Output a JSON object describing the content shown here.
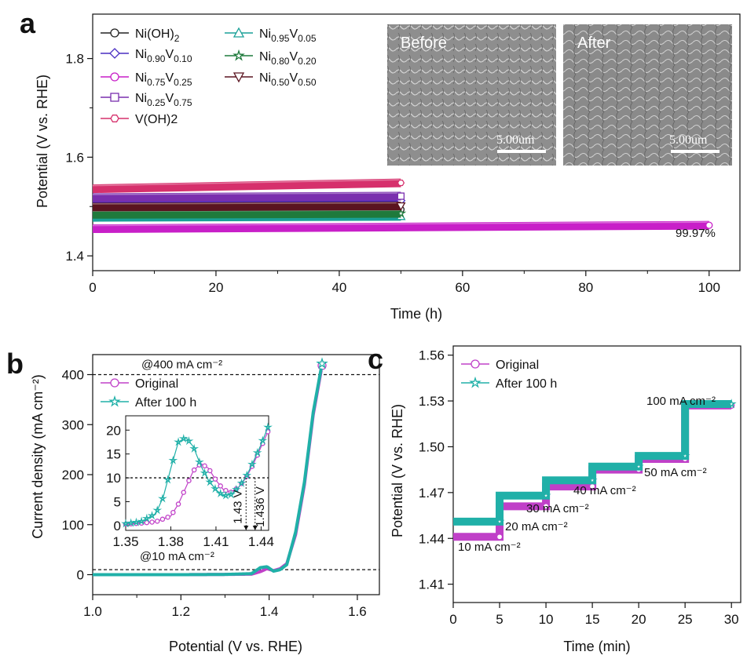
{
  "panel_labels": {
    "a": "a",
    "b": "b",
    "c": "c"
  },
  "chart_data": [
    {
      "type": "line",
      "panel": "a",
      "xlabel": "Time (h)",
      "ylabel": "Potential (V vs. RHE)",
      "xlim": [
        0,
        105
      ],
      "ylim": [
        1.37,
        1.89
      ],
      "xticks": [
        "0",
        "20",
        "40",
        "60",
        "80",
        "100"
      ],
      "yticks": [
        "1.4",
        "1.6",
        "1.8"
      ],
      "annotation": "99.97%",
      "series": [
        {
          "name": "Ni(OH)2",
          "legend_main": "Ni(OH)",
          "legend_sub": [
            "2"
          ],
          "color": "#222222",
          "marker": "circle",
          "x": [
            0,
            50
          ],
          "y": [
            1.491,
            1.494
          ]
        },
        {
          "name": "Ni0.90V0.10",
          "legend_main": "Ni|V",
          "legend_sub": [
            "0.90",
            "0.10"
          ],
          "color": "#4a2fc2",
          "marker": "diamond",
          "x": [
            0,
            50
          ],
          "y": [
            1.51,
            1.512
          ]
        },
        {
          "name": "Ni0.75V0.25",
          "legend_main": "Ni|V",
          "legend_sub": [
            "0.75",
            "0.25"
          ],
          "color": "#c81fc8",
          "marker": "circle",
          "x": [
            0,
            100
          ],
          "y": [
            1.455,
            1.462
          ]
        },
        {
          "name": "Ni0.25V0.75",
          "legend_main": "Ni|V",
          "legend_sub": [
            "0.25",
            "0.75"
          ],
          "color": "#7a2fae",
          "marker": "square",
          "x": [
            0,
            50
          ],
          "y": [
            1.518,
            1.521
          ]
        },
        {
          "name": "V(OH)2",
          "legend_main": "V(OH)2",
          "legend_sub": [],
          "color": "#d6306c",
          "marker": "hexagon",
          "x": [
            0,
            50
          ],
          "y": [
            1.536,
            1.548
          ]
        },
        {
          "name": "Ni0.95V0.05",
          "legend_main": "Ni|V",
          "legend_sub": [
            "0.95",
            "0.05"
          ],
          "color": "#1aa098",
          "marker": "triangle-up",
          "x": [
            0,
            50
          ],
          "y": [
            1.478,
            1.48
          ]
        },
        {
          "name": "Ni0.80V0.20",
          "legend_main": "Ni|V",
          "legend_sub": [
            "0.80",
            "0.20"
          ],
          "color": "#1f7a3c",
          "marker": "star",
          "x": [
            0,
            50
          ],
          "y": [
            1.484,
            1.486
          ]
        },
        {
          "name": "Ni0.50V0.50",
          "legend_main": "Ni|V",
          "legend_sub": [
            "0.50",
            "0.50"
          ],
          "color": "#5a1420",
          "marker": "triangle-down",
          "x": [
            0,
            50
          ],
          "y": [
            1.499,
            1.501
          ]
        }
      ],
      "inset_images": [
        {
          "label": "Before",
          "scale": "5.00um"
        },
        {
          "label": "After",
          "scale": "5.00um"
        }
      ]
    },
    {
      "type": "line",
      "panel": "b",
      "xlabel": "Potential (V vs. RHE)",
      "ylabel": "Current density (mA cm⁻²)",
      "xlim": [
        1.0,
        1.65
      ],
      "ylim": [
        -40,
        440
      ],
      "xticks": [
        "1.0",
        "1.2",
        "1.4",
        "1.6"
      ],
      "yticks": [
        "0",
        "100",
        "200",
        "300",
        "400"
      ],
      "reference_lines": [
        {
          "y": 400,
          "label": "@400 mA cm⁻²"
        },
        {
          "y": 10,
          "label": "@10 mA cm⁻²"
        }
      ],
      "series": [
        {
          "name": "Original",
          "color": "#c040c8",
          "marker": "circle",
          "x": [
            1.0,
            1.2,
            1.3,
            1.36,
            1.38,
            1.395,
            1.41,
            1.425,
            1.44,
            1.46,
            1.48,
            1.5,
            1.52
          ],
          "y": [
            0,
            0,
            0.5,
            1,
            6,
            12,
            8,
            12,
            22,
            80,
            180,
            320,
            418
          ]
        },
        {
          "name": "After 100 h",
          "color": "#20b0a8",
          "marker": "star",
          "x": [
            1.0,
            1.2,
            1.3,
            1.36,
            1.38,
            1.395,
            1.41,
            1.425,
            1.44,
            1.46,
            1.48,
            1.5,
            1.52
          ],
          "y": [
            0,
            0,
            0.5,
            2,
            14,
            16,
            7,
            10,
            20,
            85,
            185,
            325,
            422
          ]
        }
      ],
      "inset": {
        "xlim": [
          1.35,
          1.445
        ],
        "ylim": [
          -1,
          23
        ],
        "xticks": [
          "1.35",
          "1.38",
          "1.41",
          "1.44"
        ],
        "yticks": [
          "0",
          "5",
          "10",
          "15",
          "20"
        ],
        "reference_line": 10,
        "markers": [
          {
            "x": 1.43,
            "label": "1.43 V"
          },
          {
            "x": 1.436,
            "label": "1.436 V"
          }
        ],
        "series": [
          {
            "name": "Original",
            "x": [
              1.35,
              1.36,
              1.37,
              1.38,
              1.385,
              1.39,
              1.395,
              1.4,
              1.405,
              1.41,
              1.415,
              1.42,
              1.425,
              1.43,
              1.435,
              1.44,
              1.445
            ],
            "y": [
              0.3,
              0.5,
              0.8,
              2.0,
              4.5,
              8.0,
              11.5,
              13.0,
              12.0,
              9.5,
              7.5,
              7.0,
              8.0,
              10.0,
              13.0,
              16.5,
              20.0
            ]
          },
          {
            "name": "After 100 h",
            "x": [
              1.35,
              1.36,
              1.37,
              1.375,
              1.38,
              1.385,
              1.39,
              1.395,
              1.4,
              1.405,
              1.41,
              1.415,
              1.42,
              1.425,
              1.43,
              1.435,
              1.44,
              1.445
            ],
            "y": [
              0.4,
              0.8,
              2.5,
              6.0,
              12.0,
              17.5,
              18.5,
              16.5,
              12.5,
              9.5,
              7.5,
              6.2,
              6.5,
              8.0,
              10.2,
              13.5,
              17.0,
              21.0
            ]
          }
        ]
      }
    },
    {
      "type": "line",
      "panel": "c",
      "xlabel": "Time (min)",
      "ylabel": "Potential (V vs. RHE)",
      "xlim": [
        0,
        31
      ],
      "ylim": [
        1.398,
        1.566
      ],
      "xticks": [
        "0",
        "5",
        "10",
        "15",
        "20",
        "25",
        "30"
      ],
      "yticks": [
        "1.41",
        "1.44",
        "1.47",
        "1.50",
        "1.53",
        "1.56"
      ],
      "step_labels": [
        "10 mA cm⁻²",
        "20 mA cm⁻²",
        "30 mA cm⁻²",
        "40 mA cm⁻²",
        "50 mA cm⁻²",
        "100 mA cm⁻²"
      ],
      "series": [
        {
          "name": "Original",
          "color": "#c040c8",
          "marker": "circle",
          "steps": [
            1.441,
            1.461,
            1.474,
            1.485,
            1.492,
            1.527
          ]
        },
        {
          "name": "After 100 h",
          "color": "#20b0a8",
          "marker": "star",
          "steps": [
            1.451,
            1.468,
            1.478,
            1.487,
            1.494,
            1.528
          ]
        }
      ]
    }
  ]
}
